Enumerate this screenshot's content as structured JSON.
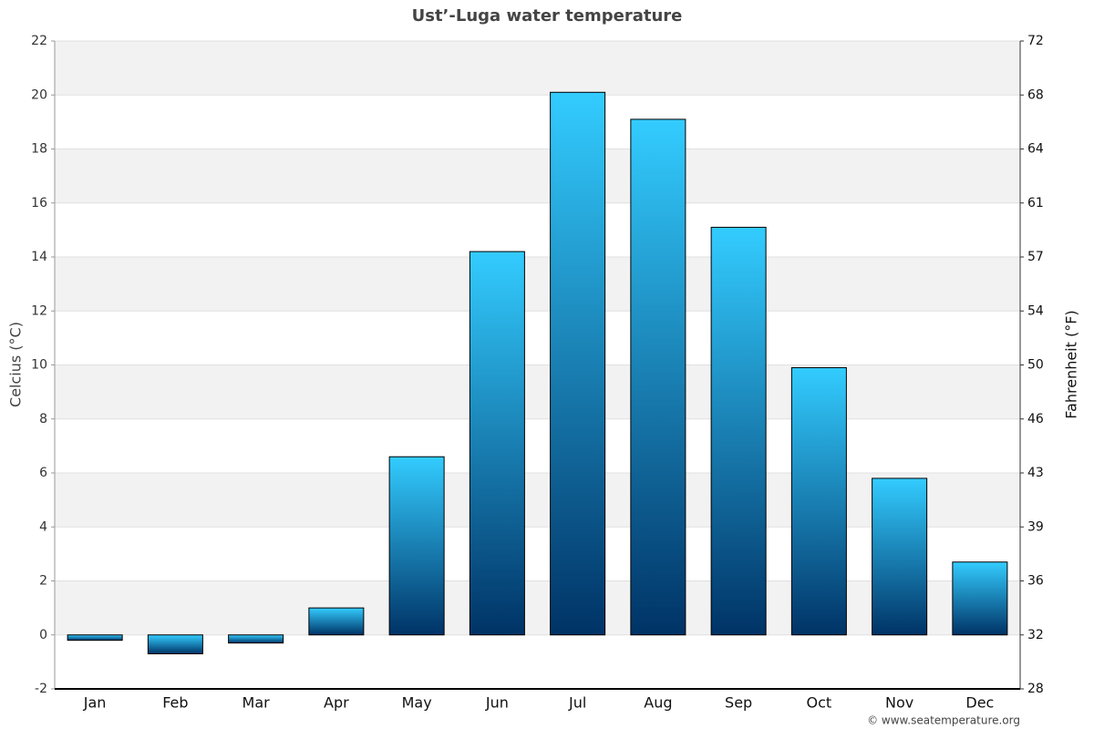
{
  "chart_data": {
    "type": "bar",
    "title": "Ust’-Luga water temperature",
    "ylabel": "Celcius (°C)",
    "y2label": "Fahrenheit (°F)",
    "categories": [
      "Jan",
      "Feb",
      "Mar",
      "Apr",
      "May",
      "Jun",
      "Jul",
      "Aug",
      "Sep",
      "Oct",
      "Nov",
      "Dec"
    ],
    "values": [
      -0.2,
      -0.7,
      -0.3,
      1.0,
      6.6,
      14.2,
      20.1,
      19.1,
      15.1,
      9.9,
      5.8,
      2.7
    ],
    "color": "#33ccff",
    "ylim": [
      -2,
      22
    ],
    "yticks": [
      -2,
      0,
      2,
      4,
      6,
      8,
      10,
      12,
      14,
      16,
      18,
      20,
      22
    ],
    "y2lim": [
      28.4,
      71.6
    ],
    "y2ticks": [
      {
        "value": 28.4,
        "label": "28"
      },
      32,
      {
        "value": 35.6,
        "label": "36"
      },
      {
        "value": 39.2,
        "label": "39"
      },
      {
        "value": 42.8,
        "label": "43"
      },
      {
        "value": 46.4,
        "label": "46"
      },
      50,
      {
        "value": 53.6,
        "label": "54"
      },
      {
        "value": 57.2,
        "label": "57"
      },
      {
        "value": 60.8,
        "label": "61"
      },
      {
        "value": 64.4,
        "label": "64"
      },
      68,
      {
        "value": 71.6,
        "label": "72"
      }
    ],
    "grid": true,
    "source": "© www.seatemperature.org"
  }
}
